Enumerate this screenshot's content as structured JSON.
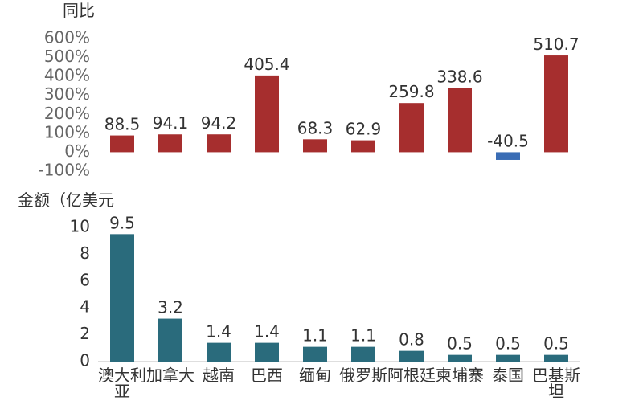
{
  "chart_data": [
    {
      "type": "bar",
      "ylabel": "同比",
      "categories": [
        "澳大利亚",
        "加拿大",
        "越南",
        "巴西",
        "缅甸",
        "俄罗斯",
        "阿根廷",
        "柬埔寨",
        "泰国",
        "巴基斯坦"
      ],
      "values": [
        88.5,
        94.1,
        94.2,
        405.4,
        68.3,
        62.9,
        259.8,
        338.6,
        -40.5,
        510.7
      ],
      "data_labels": [
        "88.5",
        "94.1",
        "94.2",
        "405.4",
        "68.3",
        "62.9",
        "259.8",
        "338.6",
        "-40.5",
        "510.7"
      ],
      "ylim": [
        -100,
        600
      ],
      "yticks": [
        600,
        500,
        400,
        300,
        200,
        100,
        0,
        -100
      ],
      "ytick_labels": [
        "600%",
        "500%",
        "400%",
        "300%",
        "200%",
        "100%",
        "0%",
        "-100%"
      ],
      "colors": {
        "positive": "#a62e2e",
        "negative": "#3a6db5"
      }
    },
    {
      "type": "bar",
      "ylabel": "金额（亿美元",
      "categories": [
        "澳大利亚",
        "加拿大",
        "越南",
        "巴西",
        "缅甸",
        "俄罗斯",
        "阿根廷",
        "柬埔寨",
        "泰国",
        "巴基斯坦"
      ],
      "category_labels": [
        [
          "澳大利",
          "亚"
        ],
        [
          "加拿大"
        ],
        [
          "越南"
        ],
        [
          "巴西"
        ],
        [
          "缅甸"
        ],
        [
          "俄罗斯"
        ],
        [
          "阿根廷"
        ],
        [
          "柬埔寨"
        ],
        [
          "泰国"
        ],
        [
          "巴基斯",
          "坦"
        ]
      ],
      "values": [
        9.5,
        3.2,
        1.4,
        1.4,
        1.1,
        1.1,
        0.8,
        0.5,
        0.5,
        0.5
      ],
      "data_labels": [
        "9.5",
        "3.2",
        "1.4",
        "1.4",
        "1.1",
        "1.1",
        "0.8",
        "0.5",
        "0.5",
        "0.5"
      ],
      "ylim": [
        0,
        10
      ],
      "yticks": [
        10,
        8,
        6,
        4,
        2,
        0
      ],
      "ytick_labels": [
        "10",
        "8",
        "6",
        "4",
        "2",
        "0"
      ],
      "colors": {
        "bar": "#2a6b7c"
      }
    }
  ]
}
